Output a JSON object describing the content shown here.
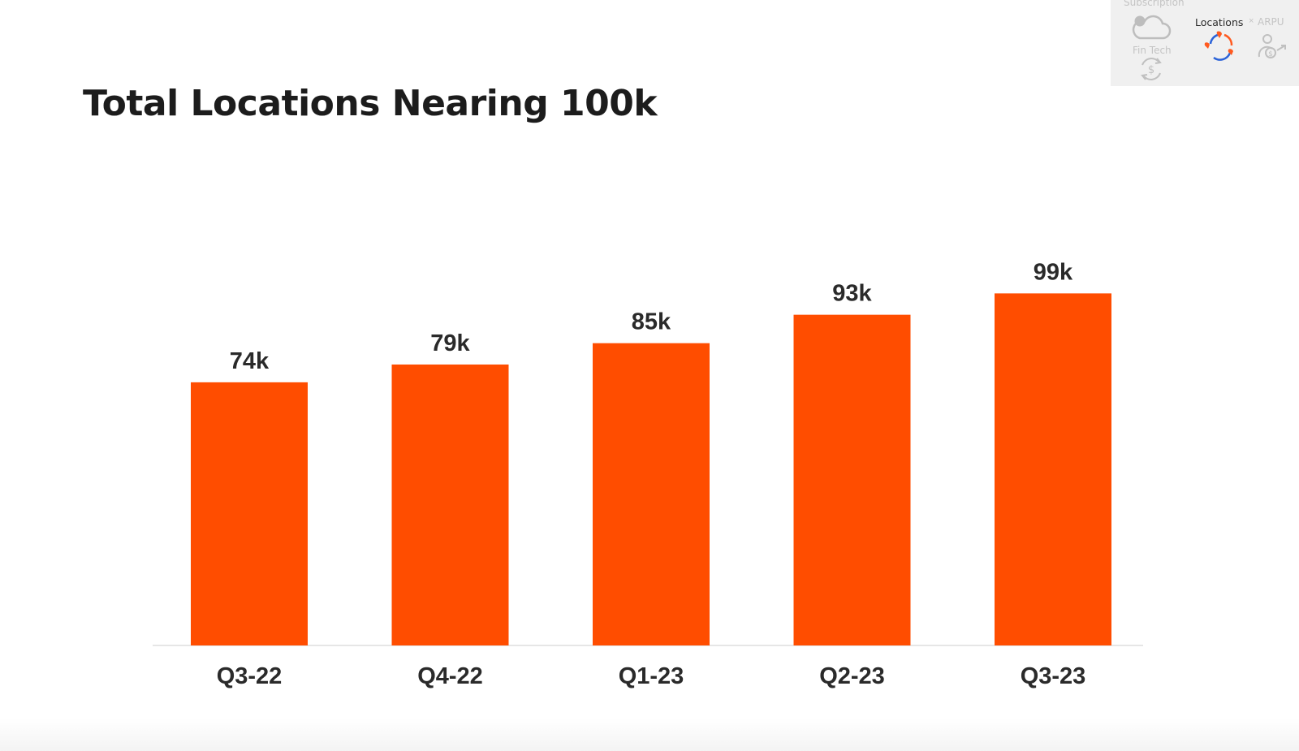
{
  "slide": {
    "title": "Total Locations Nearing 100k"
  },
  "nav": {
    "subscription_label": "Subscription",
    "fintech_label": "Fin Tech",
    "locations_label": "Locations",
    "arpu_label": "ARPU",
    "separator": "×",
    "active": "Locations",
    "accent_colors": [
      "#ff5a1f",
      "#2a62d8"
    ]
  },
  "chart_data": {
    "type": "bar",
    "categories": [
      "Q3-22",
      "Q4-22",
      "Q1-23",
      "Q2-23",
      "Q3-23"
    ],
    "values": [
      74,
      79,
      85,
      93,
      99
    ],
    "data_labels": [
      "74k",
      "79k",
      "85k",
      "93k",
      "99k"
    ],
    "unit": "k",
    "title": "Total Locations Nearing 100k",
    "xlabel": "",
    "ylabel": "",
    "bar_color": "#ff4d00",
    "grid": false,
    "legend": "none"
  }
}
